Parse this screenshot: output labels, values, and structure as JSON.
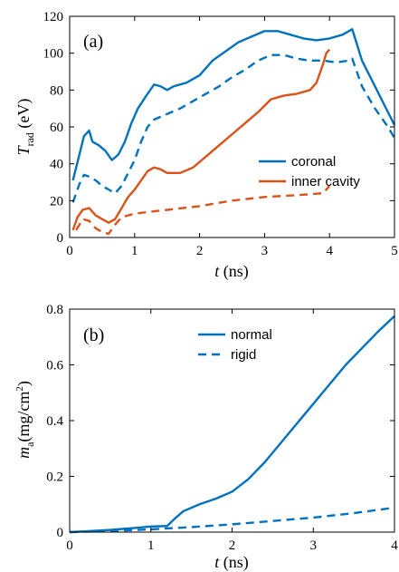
{
  "colors": {
    "blue": "#0072BD",
    "orange": "#D95319",
    "axis": "#000000",
    "background": "#ffffff"
  },
  "chart_data": [
    {
      "type": "line",
      "panel_label": "(a)",
      "xlabel": {
        "var": "t",
        "unit": " (ns)"
      },
      "ylabel": {
        "var": "T",
        "sub": "rad",
        "unit": " (eV)"
      },
      "xlim": [
        0,
        5
      ],
      "ylim": [
        0,
        120
      ],
      "xticks": [
        0,
        1,
        2,
        3,
        4,
        5
      ],
      "yticks": [
        0,
        20,
        40,
        60,
        80,
        100,
        120
      ],
      "xtick_labels": [
        "0",
        "1",
        "2",
        "3",
        "4",
        "5"
      ],
      "ytick_labels": [
        "0",
        "20",
        "40",
        "60",
        "80",
        "100",
        "120"
      ],
      "legend": {
        "position": "center-right",
        "entries": [
          "coronal",
          "inner cavity"
        ]
      },
      "series": [
        {
          "name": "coronal",
          "color": "#0072BD",
          "style": "solid",
          "x": [
            0.05,
            0.15,
            0.22,
            0.3,
            0.35,
            0.45,
            0.55,
            0.65,
            0.75,
            0.85,
            0.95,
            1.05,
            1.2,
            1.3,
            1.4,
            1.5,
            1.6,
            1.8,
            2.0,
            2.2,
            2.4,
            2.6,
            2.8,
            3.0,
            3.2,
            3.4,
            3.6,
            3.8,
            4.0,
            4.2,
            4.35,
            4.5,
            4.7,
            4.9,
            5.0
          ],
          "y": [
            31,
            45,
            55,
            58,
            52,
            50,
            47,
            42,
            45,
            52,
            62,
            70,
            78,
            83,
            82,
            80,
            82,
            84,
            88,
            96,
            101,
            106,
            109,
            112,
            112,
            110,
            108,
            107,
            108,
            110,
            113,
            96,
            82,
            68,
            61
          ]
        },
        {
          "name": "coronal",
          "color": "#0072BD",
          "style": "dashed",
          "x": [
            0.05,
            0.15,
            0.22,
            0.3,
            0.4,
            0.5,
            0.6,
            0.7,
            0.8,
            0.9,
            1.0,
            1.1,
            1.2,
            1.3,
            1.5,
            1.7,
            1.9,
            2.1,
            2.3,
            2.5,
            2.7,
            2.9,
            3.1,
            3.3,
            3.5,
            3.7,
            3.9,
            4.1,
            4.3,
            4.35,
            4.5,
            4.7,
            4.9,
            5.0
          ],
          "y": [
            19,
            29,
            34,
            33,
            31,
            28,
            26,
            24,
            28,
            35,
            42,
            52,
            60,
            64,
            67,
            70,
            74,
            78,
            82,
            87,
            91,
            96,
            99,
            99,
            97,
            96,
            96,
            95,
            96,
            97,
            82,
            70,
            60,
            54
          ]
        },
        {
          "name": "inner cavity",
          "color": "#D95319",
          "style": "solid",
          "x": [
            0.05,
            0.12,
            0.2,
            0.3,
            0.4,
            0.5,
            0.6,
            0.7,
            0.8,
            0.9,
            1.0,
            1.1,
            1.2,
            1.3,
            1.4,
            1.5,
            1.7,
            1.9,
            2.1,
            2.3,
            2.5,
            2.7,
            2.9,
            3.1,
            3.3,
            3.5,
            3.7,
            3.8,
            3.9,
            3.95,
            4.0
          ],
          "y": [
            4,
            11,
            15,
            16,
            12,
            10,
            8,
            10,
            16,
            22,
            26,
            31,
            36,
            38,
            37,
            35,
            35,
            38,
            44,
            50,
            56,
            62,
            68,
            75,
            77,
            78,
            80,
            84,
            94,
            100,
            102
          ]
        },
        {
          "name": "inner cavity",
          "color": "#D95319",
          "style": "dashed",
          "x": [
            0.1,
            0.2,
            0.3,
            0.4,
            0.5,
            0.6,
            0.7,
            0.8,
            0.9,
            1.0,
            1.5,
            2.0,
            2.5,
            3.0,
            3.5,
            3.9,
            4.0
          ],
          "y": [
            4,
            10,
            9,
            5,
            3,
            2,
            7,
            11,
            12,
            13,
            15,
            17,
            20,
            22,
            23,
            24,
            28
          ]
        }
      ]
    },
    {
      "type": "line",
      "panel_label": "(b)",
      "xlabel": {
        "var": "t",
        "unit": " (ns)"
      },
      "ylabel": {
        "var": "m",
        "sub": "a",
        "unit": "(mg/cm",
        "sup": "2",
        "close": ")"
      },
      "xlim": [
        0,
        4
      ],
      "ylim": [
        0,
        0.8
      ],
      "xticks": [
        0,
        1,
        2,
        3,
        4
      ],
      "yticks": [
        0,
        0.2,
        0.4,
        0.6,
        0.8
      ],
      "xtick_labels": [
        "0",
        "1",
        "2",
        "3",
        "4"
      ],
      "ytick_labels": [
        "0",
        "0.2",
        "0.4",
        "0.6",
        "0.8"
      ],
      "legend": {
        "position": "top-center",
        "entries": [
          "normal",
          "rigid"
        ]
      },
      "series": [
        {
          "name": "normal",
          "color": "#0072BD",
          "style": "solid",
          "x": [
            0,
            0.2,
            0.5,
            0.8,
            1.0,
            1.2,
            1.3,
            1.4,
            1.6,
            1.8,
            2.0,
            2.2,
            2.4,
            2.6,
            2.8,
            3.0,
            3.2,
            3.4,
            3.6,
            3.8,
            4.0
          ],
          "y": [
            0,
            0.003,
            0.008,
            0.015,
            0.02,
            0.022,
            0.05,
            0.075,
            0.1,
            0.12,
            0.145,
            0.19,
            0.25,
            0.32,
            0.39,
            0.46,
            0.53,
            0.6,
            0.66,
            0.72,
            0.775
          ]
        },
        {
          "name": "rigid",
          "color": "#0072BD",
          "style": "dashed",
          "x": [
            0,
            0.5,
            1.0,
            1.5,
            2.0,
            2.5,
            3.0,
            3.5,
            4.0
          ],
          "y": [
            0,
            0.004,
            0.01,
            0.018,
            0.028,
            0.04,
            0.052,
            0.068,
            0.088
          ]
        }
      ]
    }
  ]
}
